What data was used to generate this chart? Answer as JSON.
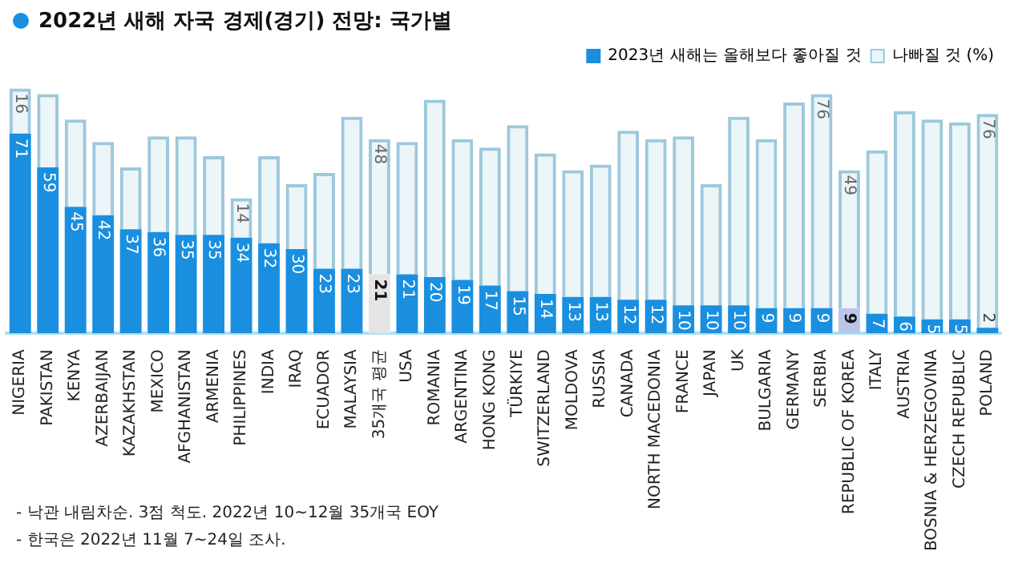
{
  "chart_data": {
    "type": "bar",
    "stacked": true,
    "title": "2022년 새해 자국 경제(경기) 전망: 국가별",
    "legend": "top right",
    "categories": [
      "NIGERIA",
      "PAKISTAN",
      "KENYA",
      "AZERBAIJAN",
      "KAZAKHSTAN",
      "MEXICO",
      "AFGHANISTAN",
      "ARMENIA",
      "PHILIPPINES",
      "INDIA",
      "IRAQ",
      "ECUADOR",
      "MALAYSIA",
      "35개국 평균",
      "USA",
      "ROMANIA",
      "ARGENTINA",
      "HONG KONG",
      "TÜRKIYE",
      "SWITZERLAND",
      "MOLDOVA",
      "RUSSIA",
      "CANADA",
      "NORTH MACEDONIA",
      "FRANCE",
      "JAPAN",
      "UK",
      "BULGARIA",
      "GERMANY",
      "SERBIA",
      "REPUBLIC OF KOREA",
      "ITALY",
      "AUSTRIA",
      "BOSNIA & HERZEGOVINA",
      "CZECH REPUBLIC",
      "POLAND"
    ],
    "series": [
      {
        "name": "2023년 새해는 올해보다 좋아질 것",
        "color": "#1a8fe0",
        "colors": [
          "#1a8fe0",
          "#1a8fe0",
          "#1a8fe0",
          "#1a8fe0",
          "#1a8fe0",
          "#1a8fe0",
          "#1a8fe0",
          "#1a8fe0",
          "#1a8fe0",
          "#1a8fe0",
          "#1a8fe0",
          "#1a8fe0",
          "#1a8fe0",
          "#e4e4e4",
          "#1a8fe0",
          "#1a8fe0",
          "#1a8fe0",
          "#1a8fe0",
          "#1a8fe0",
          "#1a8fe0",
          "#1a8fe0",
          "#1a8fe0",
          "#1a8fe0",
          "#1a8fe0",
          "#1a8fe0",
          "#1a8fe0",
          "#1a8fe0",
          "#1a8fe0",
          "#1a8fe0",
          "#1a8fe0",
          "#b9c6e8",
          "#1a8fe0",
          "#1a8fe0",
          "#1a8fe0",
          "#1a8fe0",
          "#1a8fe0"
        ],
        "values": [
          71,
          59,
          45,
          42,
          37,
          36,
          35,
          35,
          34,
          32,
          30,
          23,
          23,
          21,
          21,
          20,
          19,
          17,
          15,
          14,
          13,
          13,
          12,
          12,
          10,
          10,
          10,
          9,
          9,
          9,
          9,
          7,
          6,
          5,
          5,
          2
        ],
        "value_labels": [
          "71",
          "59",
          "45",
          "42",
          "37",
          "36",
          "35",
          "35",
          "34",
          "32",
          "30",
          "23",
          "23",
          "21",
          "21",
          "20",
          "19",
          "17",
          "15",
          "14",
          "13",
          "13",
          "12",
          "12",
          "10",
          "10",
          "10",
          "9",
          "9",
          "9",
          "9",
          "7",
          "6",
          "5",
          "5",
          "2"
        ]
      },
      {
        "name": "나빠질 것 (%)",
        "color": "#9cc8dc",
        "values": [
          16,
          26,
          31,
          26,
          22,
          34,
          35,
          28,
          14,
          31,
          23,
          34,
          54,
          48,
          47,
          63,
          50,
          49,
          59,
          50,
          45,
          47,
          60,
          57,
          60,
          43,
          67,
          60,
          73,
          76,
          49,
          58,
          73,
          71,
          70,
          76
        ],
        "value_labels": [
          "16",
          null,
          null,
          null,
          null,
          null,
          null,
          null,
          "14",
          null,
          null,
          null,
          null,
          "48",
          null,
          null,
          null,
          null,
          null,
          null,
          null,
          null,
          null,
          null,
          null,
          null,
          null,
          null,
          null,
          "76",
          "49",
          null,
          null,
          null,
          null,
          "76"
        ]
      }
    ],
    "annotations": [
      "- 낙관 내림차순. 3점 척도. 2022년 10~12월 35개국 EOY",
      "- 한국은 2022년 11월 7~24일 조사."
    ]
  }
}
